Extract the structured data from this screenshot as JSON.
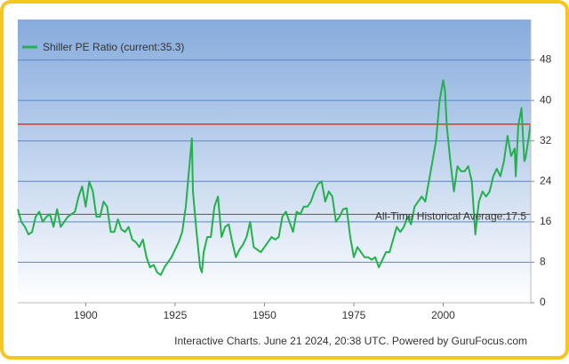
{
  "chart_data": {
    "type": "line",
    "footer": "Interactive Charts. June 21 2024, 20:38 UTC. Powered by GuruFocus.com",
    "xlim": [
      1881,
      2024.5
    ],
    "xticks": [
      1900,
      1925,
      1950,
      1975,
      2000
    ],
    "ylim": [
      0,
      56
    ],
    "yticks": [
      0,
      8,
      16,
      24,
      32,
      40,
      48
    ],
    "grid": true,
    "legend": "top-left",
    "reference_lines": [
      {
        "value": 35.3,
        "color": "#e8322a"
      },
      {
        "value": 17.5,
        "color": "#555555",
        "label": "All-Time Historical Average:17.5"
      }
    ],
    "x": [
      1881,
      1882,
      1883,
      1884,
      1885,
      1886,
      1887,
      1888,
      1889,
      1890,
      1891,
      1892,
      1893,
      1894,
      1895,
      1896,
      1897,
      1898,
      1899,
      1900,
      1901,
      1902,
      1903,
      1904,
      1905,
      1906,
      1907,
      1908,
      1909,
      1910,
      1911,
      1912,
      1913,
      1914,
      1915,
      1916,
      1917,
      1918,
      1919,
      1920,
      1921,
      1922,
      1923,
      1924,
      1925,
      1926,
      1927,
      1928,
      1929,
      1929.7,
      1930,
      1931,
      1932,
      1932.5,
      1933,
      1934,
      1935,
      1936,
      1937,
      1938,
      1939,
      1940,
      1941,
      1942,
      1943,
      1944,
      1945,
      1946,
      1947,
      1948,
      1949,
      1950,
      1951,
      1952,
      1953,
      1954,
      1955,
      1956,
      1957,
      1958,
      1959,
      1960,
      1961,
      1962,
      1963,
      1964,
      1965,
      1966,
      1967,
      1968,
      1969,
      1970,
      1971,
      1972,
      1973,
      1974,
      1975,
      1976,
      1977,
      1978,
      1979,
      1980,
      1981,
      1982,
      1983,
      1984,
      1985,
      1986,
      1987,
      1988,
      1989,
      1990,
      1991,
      1992,
      1993,
      1994,
      1995,
      1996,
      1997,
      1998,
      1999,
      2000,
      2000.5,
      2001,
      2002,
      2003,
      2004,
      2005,
      2006,
      2007,
      2008,
      2009,
      2009.5,
      2010,
      2011,
      2012,
      2013,
      2014,
      2015,
      2016,
      2017,
      2018,
      2019,
      2020,
      2020.3,
      2021,
      2021.9,
      2022.7,
      2023,
      2024,
      2024.4
    ],
    "series": [
      {
        "name": "Shiller PE Ratio (current:35.3)",
        "color": "#22b14c",
        "values": [
          18.5,
          16,
          15,
          13.5,
          14,
          17,
          18,
          16,
          17,
          17.5,
          15,
          18.5,
          15,
          16,
          17,
          17.5,
          18,
          21,
          23,
          19,
          24,
          22,
          17,
          17,
          20,
          19,
          14,
          14,
          16.5,
          14.5,
          14,
          15,
          12.5,
          12,
          11,
          12.5,
          9,
          7,
          7.5,
          6,
          5.5,
          7,
          8,
          9,
          10.5,
          12,
          14,
          19,
          27,
          32.5,
          22,
          14,
          7,
          6,
          10,
          13,
          13,
          19,
          21,
          13,
          15,
          15.5,
          12,
          9,
          10.5,
          11.5,
          13,
          16,
          11,
          10.5,
          10,
          11,
          12,
          13,
          12.5,
          13,
          17,
          18,
          16,
          14,
          18,
          17.5,
          19,
          19,
          20,
          22,
          23.5,
          24,
          20,
          22,
          21,
          16,
          17,
          18.5,
          18.7,
          13,
          9,
          11,
          10,
          9,
          9,
          8.5,
          9,
          7,
          8.5,
          10,
          10,
          12.5,
          15,
          14,
          15,
          17,
          15.5,
          19,
          20,
          21,
          20,
          24,
          28,
          32,
          40,
          44,
          42,
          35,
          28,
          22,
          27,
          26,
          26,
          27,
          24,
          13.5,
          17,
          20,
          22,
          21,
          22,
          25,
          26.5,
          25,
          28,
          33,
          29,
          30.5,
          25,
          35,
          38.5,
          28,
          28.5,
          33,
          35.3
        ]
      }
    ]
  }
}
